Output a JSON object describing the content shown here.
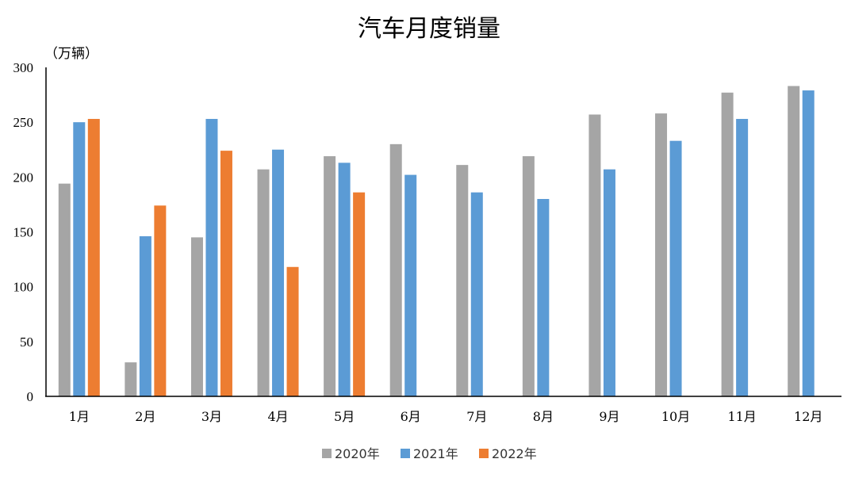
{
  "chart_data": {
    "type": "bar",
    "title": "汽车月度销量",
    "ylabel": "（万辆）",
    "xlabel": "",
    "ylim": [
      0,
      300
    ],
    "yticks": [
      0,
      50,
      100,
      150,
      200,
      250,
      300
    ],
    "grid": false,
    "legend_position": "bottom",
    "categories": [
      "1月",
      "2月",
      "3月",
      "4月",
      "5月",
      "6月",
      "7月",
      "8月",
      "9月",
      "10月",
      "11月",
      "12月"
    ],
    "series": [
      {
        "name": "2020年",
        "color": "#a5a5a5",
        "values": [
          194,
          31,
          145,
          207,
          219,
          230,
          211,
          219,
          257,
          258,
          277,
          283
        ]
      },
      {
        "name": "2021年",
        "color": "#5b9bd5",
        "values": [
          250,
          146,
          253,
          225,
          213,
          202,
          186,
          180,
          207,
          233,
          253,
          279
        ]
      },
      {
        "name": "2022年",
        "color": "#ed7d31",
        "values": [
          253,
          174,
          224,
          118,
          186,
          null,
          null,
          null,
          null,
          null,
          null,
          null
        ]
      }
    ]
  }
}
